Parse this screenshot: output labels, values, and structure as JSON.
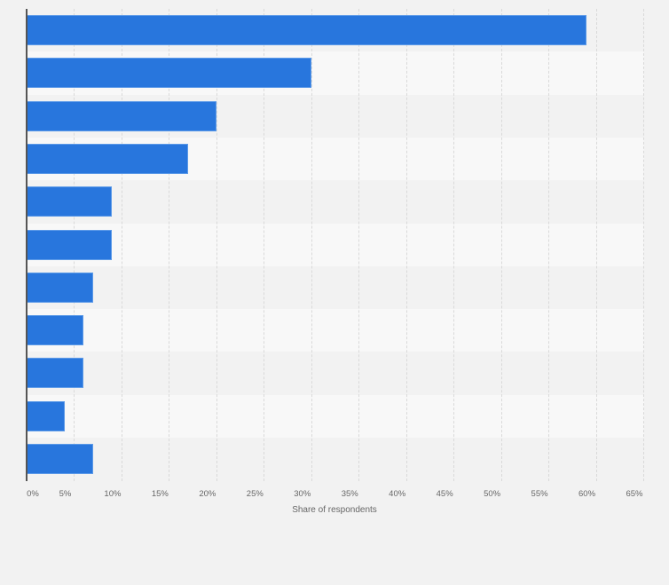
{
  "chart_data": {
    "type": "bar",
    "orientation": "horizontal",
    "title": "",
    "xlabel": "Share of respondents",
    "ylabel": "",
    "categories": [
      "",
      "",
      "",
      "",
      "",
      "",
      "",
      "",
      "",
      "",
      ""
    ],
    "values": [
      59,
      30,
      20,
      17,
      9,
      9,
      7,
      6,
      6,
      4,
      7
    ],
    "unit": "%",
    "xlim": [
      0,
      65
    ],
    "x_ticks": [
      "0%",
      "5%",
      "10%",
      "15%",
      "20%",
      "25%",
      "30%",
      "35%",
      "40%",
      "45%",
      "50%",
      "55%",
      "60%",
      "65%"
    ],
    "grid": true,
    "legend": "none",
    "bar_color": "#2876dd"
  },
  "colors": {
    "background": "#f2f2f2",
    "band_light": "#f8f8f8",
    "bar": "#2876dd",
    "axis_text": "#666666"
  }
}
